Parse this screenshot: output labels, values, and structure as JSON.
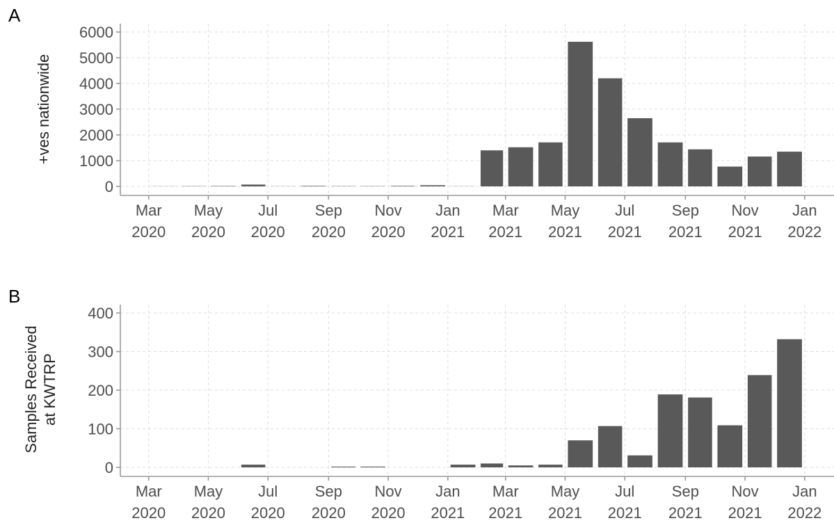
{
  "chart_data": [
    {
      "type": "bar",
      "panel": "A",
      "title": "",
      "xlabel": "",
      "ylabel": "+ves nationwide",
      "ylim": [
        0,
        6000
      ],
      "yticks": [
        0,
        1000,
        2000,
        3000,
        4000,
        5000,
        6000
      ],
      "xlim": [
        "2020-02-01",
        "2022-01-31"
      ],
      "xticks": [
        {
          "date": "2020-03-01",
          "month": "Mar",
          "year": "2020"
        },
        {
          "date": "2020-05-01",
          "month": "May",
          "year": "2020"
        },
        {
          "date": "2020-07-01",
          "month": "Jul",
          "year": "2020"
        },
        {
          "date": "2020-09-01",
          "month": "Sep",
          "year": "2020"
        },
        {
          "date": "2020-11-01",
          "month": "Nov",
          "year": "2020"
        },
        {
          "date": "2021-01-01",
          "month": "Jan",
          "year": "2021"
        },
        {
          "date": "2021-03-01",
          "month": "Mar",
          "year": "2021"
        },
        {
          "date": "2021-05-01",
          "month": "May",
          "year": "2021"
        },
        {
          "date": "2021-07-01",
          "month": "Jul",
          "year": "2021"
        },
        {
          "date": "2021-09-01",
          "month": "Sep",
          "year": "2021"
        },
        {
          "date": "2021-11-01",
          "month": "Nov",
          "year": "2021"
        },
        {
          "date": "2022-01-01",
          "month": "Jan",
          "year": "2022"
        }
      ],
      "x": [
        "2020-03",
        "2020-04",
        "2020-05",
        "2020-06",
        "2020-07",
        "2020-08",
        "2020-09",
        "2020-10",
        "2020-11",
        "2020-12",
        "2021-01",
        "2021-02",
        "2021-03",
        "2021-04",
        "2021-05",
        "2021-06",
        "2021-07",
        "2021-08",
        "2021-09",
        "2021-10",
        "2021-11",
        "2021-12"
      ],
      "values": [
        5,
        10,
        15,
        70,
        5,
        20,
        10,
        10,
        20,
        45,
        5,
        1400,
        1520,
        1710,
        5620,
        4200,
        2650,
        1710,
        1440,
        770,
        1160,
        1350
      ],
      "grid": true,
      "bar_color": "#595959"
    },
    {
      "type": "bar",
      "panel": "B",
      "title": "",
      "xlabel": "",
      "ylabel": [
        "Samples Received",
        "at KWTRP"
      ],
      "ylim": [
        0,
        400
      ],
      "yticks": [
        0,
        100,
        200,
        300,
        400
      ],
      "xlim": [
        "2020-02-01",
        "2022-01-31"
      ],
      "xticks": [
        {
          "date": "2020-03-01",
          "month": "Mar",
          "year": "2020"
        },
        {
          "date": "2020-05-01",
          "month": "May",
          "year": "2020"
        },
        {
          "date": "2020-07-01",
          "month": "Jul",
          "year": "2020"
        },
        {
          "date": "2020-09-01",
          "month": "Sep",
          "year": "2020"
        },
        {
          "date": "2020-11-01",
          "month": "Nov",
          "year": "2020"
        },
        {
          "date": "2021-01-01",
          "month": "Jan",
          "year": "2021"
        },
        {
          "date": "2021-03-01",
          "month": "Mar",
          "year": "2021"
        },
        {
          "date": "2021-05-01",
          "month": "May",
          "year": "2021"
        },
        {
          "date": "2021-07-01",
          "month": "Jul",
          "year": "2021"
        },
        {
          "date": "2021-09-01",
          "month": "Sep",
          "year": "2021"
        },
        {
          "date": "2021-11-01",
          "month": "Nov",
          "year": "2021"
        },
        {
          "date": "2022-01-01",
          "month": "Jan",
          "year": "2022"
        }
      ],
      "x": [
        "2020-03",
        "2020-04",
        "2020-05",
        "2020-06",
        "2020-07",
        "2020-08",
        "2020-09",
        "2020-10",
        "2020-11",
        "2020-12",
        "2021-01",
        "2021-02",
        "2021-03",
        "2021-04",
        "2021-05",
        "2021-06",
        "2021-07",
        "2021-08",
        "2021-09",
        "2021-10",
        "2021-11",
        "2021-12"
      ],
      "values": [
        0,
        0,
        0,
        7,
        0,
        0,
        2,
        2,
        0,
        0,
        7,
        10,
        5,
        7,
        70,
        107,
        31,
        189,
        181,
        109,
        239,
        332
      ],
      "grid": true,
      "bar_color": "#595959"
    }
  ]
}
